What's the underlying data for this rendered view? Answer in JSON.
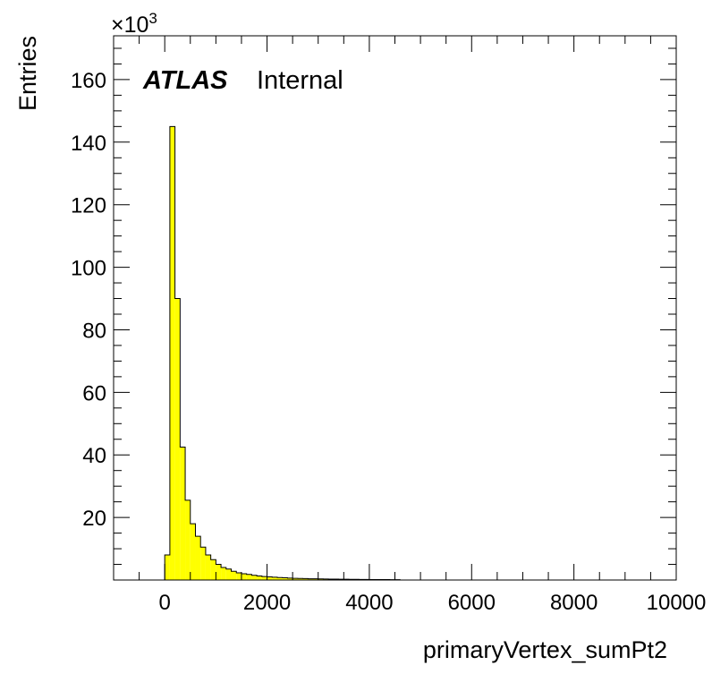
{
  "chart_data": {
    "type": "histogram",
    "xlabel": "primaryVertex_sumPt2",
    "ylabel": "Entries",
    "y_multiplier": "×10",
    "y_multiplier_exp": "3",
    "labels": {
      "atlas": "ATLAS",
      "status": "Internal"
    },
    "xlim": [
      -1000,
      10000
    ],
    "ylim": [
      0,
      174
    ],
    "x_ticks": [
      0,
      2000,
      4000,
      6000,
      8000,
      10000
    ],
    "y_ticks": [
      20,
      40,
      60,
      80,
      100,
      120,
      140,
      160
    ],
    "bin_width": 100,
    "bin_start": 0,
    "values": [
      8,
      145,
      90,
      42.5,
      25.5,
      18,
      14,
      10.5,
      8,
      6.5,
      5,
      4,
      3.5,
      2.8,
      2.3,
      2,
      1.8,
      1.5,
      1.3,
      1.1,
      1,
      0.9,
      0.8,
      0.7,
      0.6,
      0.55,
      0.5,
      0.45,
      0.4,
      0.38,
      0.35,
      0.32,
      0.3,
      0.28,
      0.26,
      0.24,
      0.22,
      0.2,
      0.18,
      0.17,
      0.16,
      0.15,
      0.14,
      0.13,
      0.12,
      0.11
    ],
    "colors": {
      "fill": "#ffff00",
      "line": "#000000",
      "frame": "#000000"
    }
  }
}
